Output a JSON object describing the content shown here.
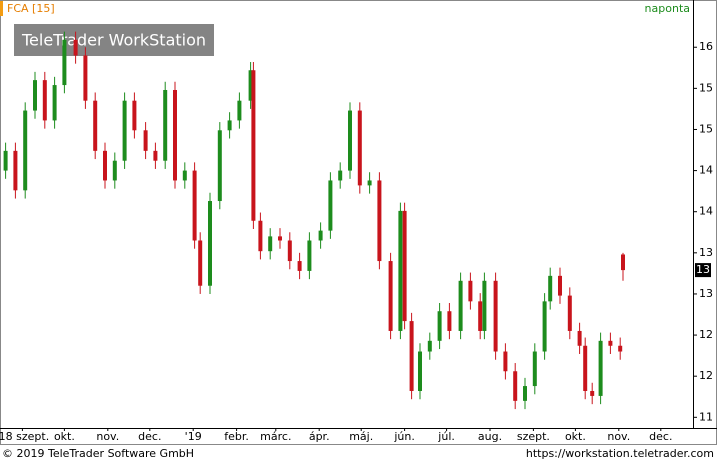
{
  "chart_data": {
    "type": "candlestick",
    "title": "FCA [15]",
    "subtitle": "naponta",
    "watermark": "TeleTrader WorkStation",
    "footer_left": "© 2019 TeleTrader Software GmbH",
    "footer_right": "https://workstation.teletrader.com",
    "up_color": "#1d8c1d",
    "down_color": "#c8141c",
    "xlim": [
      0,
      495
    ],
    "xticks": [
      {
        "value": 16,
        "label": "'18 szept."
      },
      {
        "value": 46,
        "label": "okt."
      },
      {
        "value": 77,
        "label": "nov."
      },
      {
        "value": 107,
        "label": "dec."
      },
      {
        "value": 138,
        "label": "'19"
      },
      {
        "value": 169,
        "label": "febr."
      },
      {
        "value": 197,
        "label": "márc."
      },
      {
        "value": 228,
        "label": "ápr."
      },
      {
        "value": 258,
        "label": "máj."
      },
      {
        "value": 289,
        "label": "jún."
      },
      {
        "value": 319,
        "label": "júl."
      },
      {
        "value": 350,
        "label": "aug."
      },
      {
        "value": 381,
        "label": "szept."
      },
      {
        "value": 411,
        "label": "okt."
      },
      {
        "value": 442,
        "label": "nov."
      },
      {
        "value": 472,
        "label": "dec."
      }
    ],
    "ylim": [
      11.37,
      16.55
    ],
    "yticks": [
      16,
      {
        "value": 15.5,
        "label": "15"
      },
      {
        "value": 15,
        "label": "15"
      },
      {
        "value": 14.5,
        "label": "14"
      },
      {
        "value": 14,
        "label": "14"
      },
      {
        "value": 13.5,
        "label": "13"
      },
      {
        "value": 13,
        "label": "13"
      },
      {
        "value": 12.5,
        "label": "12"
      },
      {
        "value": 12,
        "label": "12"
      },
      {
        "value": 11.5,
        "label": "11"
      }
    ],
    "last_price": {
      "value": 13.29,
      "label": "13"
    },
    "x": [
      4,
      11,
      18,
      25,
      32,
      39,
      46,
      54,
      61,
      68,
      75,
      82,
      89,
      96,
      104,
      111,
      118,
      125,
      132,
      139,
      143,
      150,
      157,
      164,
      171,
      179,
      181,
      186,
      193,
      200,
      207,
      214,
      221,
      229,
      236,
      243,
      250,
      257,
      264,
      271,
      279,
      286,
      289,
      294,
      300,
      307,
      314,
      321,
      329,
      336,
      343,
      346,
      354,
      361,
      368,
      375,
      382,
      389,
      393,
      400,
      407,
      414,
      418,
      423,
      429,
      436,
      443,
      445
    ],
    "open": [
      14.5,
      14.74,
      14.26,
      15.23,
      15.6,
      15.11,
      15.54,
      16.09,
      15.9,
      15.35,
      14.74,
      14.38,
      14.62,
      15.35,
      14.99,
      14.74,
      14.62,
      15.48,
      14.38,
      14.5,
      13.65,
      13.1,
      14.13,
      14.99,
      15.11,
      15.35,
      15.72,
      13.89,
      13.52,
      13.7,
      13.65,
      13.4,
      13.28,
      13.65,
      13.77,
      14.38,
      14.5,
      15.23,
      14.32,
      14.38,
      13.4,
      12.55,
      14.01,
      12.67,
      11.82,
      12.3,
      12.43,
      12.79,
      12.55,
      13.16,
      12.91,
      12.55,
      13.16,
      12.3,
      12.06,
      11.7,
      11.88,
      12.3,
      12.91,
      13.22,
      12.98,
      12.55,
      12.37,
      11.82,
      11.76,
      12.43,
      12.37,
      13.48
    ],
    "high": [
      14.84,
      14.84,
      15.33,
      15.7,
      15.7,
      15.64,
      16.19,
      16.19,
      16.0,
      15.45,
      14.84,
      14.72,
      15.45,
      15.45,
      15.09,
      14.84,
      15.58,
      15.58,
      14.6,
      14.6,
      13.75,
      14.23,
      15.09,
      15.21,
      15.45,
      15.82,
      15.82,
      13.99,
      13.8,
      13.8,
      13.75,
      13.5,
      13.75,
      13.87,
      14.48,
      14.6,
      15.33,
      15.33,
      14.48,
      14.48,
      13.5,
      14.11,
      14.11,
      12.77,
      12.4,
      12.53,
      12.89,
      12.89,
      13.26,
      13.26,
      13.01,
      13.26,
      13.26,
      12.4,
      12.16,
      11.98,
      12.4,
      13.01,
      13.32,
      13.32,
      13.08,
      12.65,
      12.47,
      11.92,
      12.53,
      12.53,
      12.47,
      13.5
    ],
    "low": [
      14.4,
      14.16,
      14.16,
      15.13,
      15.01,
      15.01,
      15.44,
      15.8,
      15.25,
      14.64,
      14.28,
      14.28,
      14.52,
      14.89,
      14.64,
      14.52,
      14.52,
      14.28,
      14.28,
      13.55,
      13.0,
      13.0,
      14.03,
      14.89,
      15.01,
      15.25,
      13.79,
      13.42,
      13.42,
      13.55,
      13.3,
      13.18,
      13.18,
      13.55,
      13.67,
      14.28,
      14.4,
      14.22,
      14.22,
      13.3,
      12.45,
      12.45,
      12.57,
      11.72,
      11.72,
      12.2,
      12.33,
      12.45,
      12.45,
      12.81,
      12.45,
      12.45,
      12.2,
      11.96,
      11.6,
      11.6,
      11.78,
      12.2,
      12.81,
      12.88,
      12.45,
      12.27,
      11.72,
      11.66,
      11.66,
      12.27,
      12.2,
      13.16
    ],
    "close": [
      14.74,
      14.26,
      15.23,
      15.6,
      15.11,
      15.54,
      16.09,
      15.9,
      15.35,
      14.74,
      14.38,
      14.62,
      15.35,
      14.99,
      14.74,
      14.62,
      15.48,
      14.38,
      14.5,
      13.65,
      13.1,
      14.13,
      14.99,
      15.11,
      15.35,
      15.72,
      13.89,
      13.52,
      13.7,
      13.65,
      13.4,
      13.28,
      13.65,
      13.77,
      14.38,
      14.5,
      15.23,
      14.32,
      14.38,
      13.4,
      12.55,
      14.01,
      12.67,
      11.82,
      12.3,
      12.43,
      12.79,
      12.55,
      13.16,
      12.91,
      12.55,
      13.16,
      12.3,
      12.06,
      11.7,
      11.88,
      12.3,
      12.91,
      13.22,
      12.98,
      12.55,
      12.37,
      11.82,
      11.76,
      12.43,
      12.37,
      12.3,
      13.29
    ]
  }
}
